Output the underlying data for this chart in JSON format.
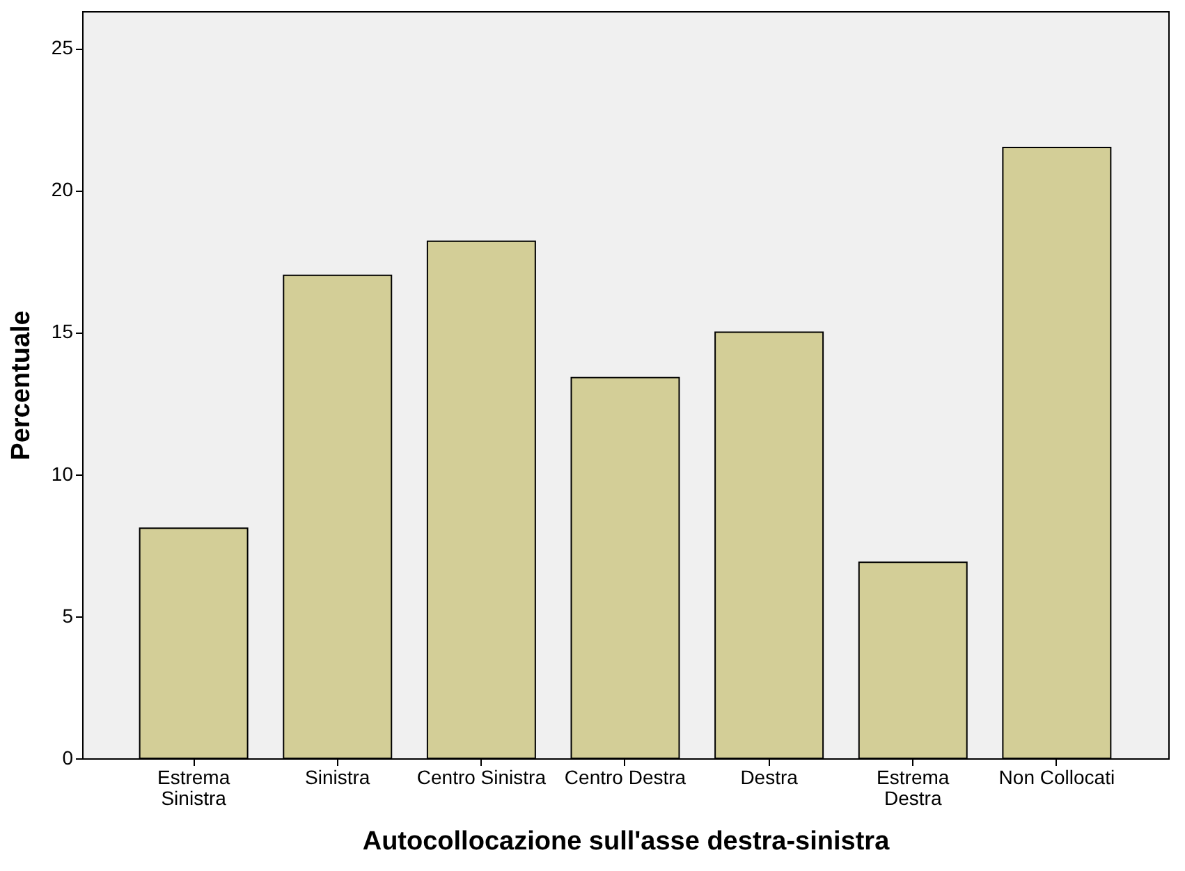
{
  "chart_data": {
    "type": "bar",
    "xlabel": "Autocollocazione sull'asse destra-sinistra",
    "ylabel": "Percentuale",
    "categories": [
      "Estrema\nSinistra",
      "Sinistra",
      "Centro Sinistra",
      "Centro Destra",
      "Destra",
      "Estrema\nDestra",
      "Non Collocati"
    ],
    "values": [
      8.1,
      17.0,
      18.2,
      13.4,
      15.0,
      6.9,
      21.5
    ],
    "color": "#d3ce97",
    "ylim": [
      0,
      26.3
    ],
    "yticks": [
      0,
      5,
      10,
      15,
      20,
      25
    ],
    "grid": false
  }
}
